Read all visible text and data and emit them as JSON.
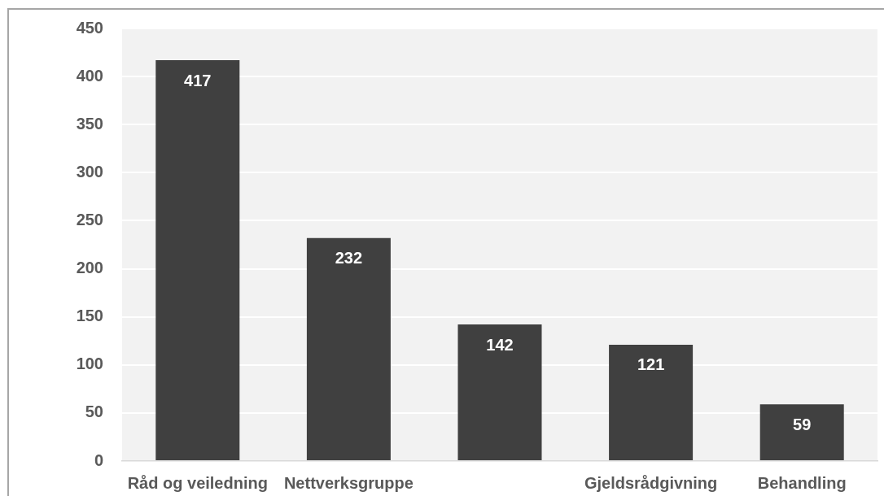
{
  "chart_data": {
    "type": "bar",
    "categories": [
      "Råd og veiledning",
      "Nettverksgruppe",
      null,
      "Gjeldsrådgivning",
      "Behandling"
    ],
    "values": [
      417,
      232,
      142,
      121,
      59
    ],
    "color": "#404040",
    "ylim": [
      0,
      450
    ],
    "yticks": [
      0,
      50,
      100,
      150,
      200,
      250,
      300,
      350,
      400,
      450
    ],
    "grid": "y",
    "data_labels": true
  }
}
